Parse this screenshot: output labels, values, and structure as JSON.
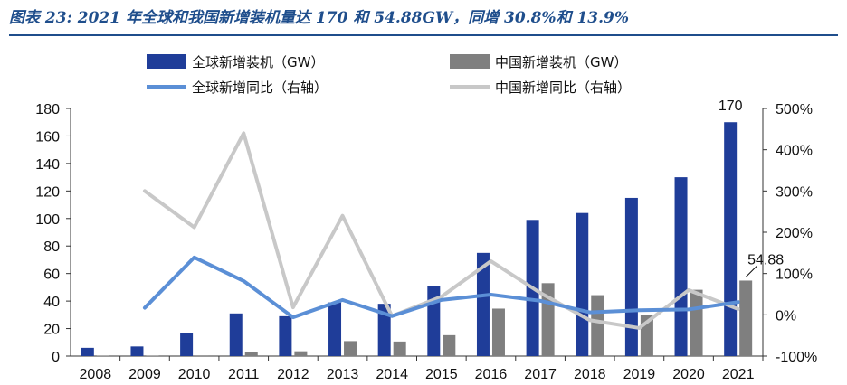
{
  "figure": {
    "title": "图表 23: 2021 年全球和我国新增装机量达 170 和 54.88GW，同增 30.8%和 13.9%"
  },
  "colors": {
    "global_bar": "#1f3d99",
    "china_bar": "#7f7f7f",
    "global_line": "#5b8fd6",
    "china_line": "#c8c8c8",
    "title": "#1f4e8c"
  },
  "chart_data": {
    "type": "bar",
    "categories": [
      "2008",
      "2009",
      "2010",
      "2011",
      "2012",
      "2013",
      "2014",
      "2015",
      "2016",
      "2017",
      "2018",
      "2019",
      "2020",
      "2021"
    ],
    "ylim": [
      0,
      180
    ],
    "y_ticks": [
      "0",
      "20",
      "40",
      "60",
      "80",
      "100",
      "120",
      "140",
      "160",
      "180"
    ],
    "y2lim": [
      -100,
      500
    ],
    "y2_ticks": [
      "-100%",
      "0%",
      "100%",
      "200%",
      "300%",
      "400%",
      "500%"
    ],
    "grid": false,
    "legend_position": "top",
    "series": [
      {
        "name": "全球新增装机（GW）",
        "type": "bar",
        "axis": "left",
        "values": [
          6,
          7,
          17,
          31,
          29,
          39,
          38,
          51,
          75,
          99,
          104,
          115,
          130,
          170
        ]
      },
      {
        "name": "中国新增装机（GW）",
        "type": "bar",
        "axis": "left",
        "values": [
          0.2,
          0.2,
          0.5,
          2.7,
          3.5,
          10.9,
          10.6,
          15.2,
          34.5,
          53,
          44.3,
          30,
          48.2,
          54.88
        ]
      },
      {
        "name": "全球新增同比（右轴）",
        "type": "line",
        "axis": "right",
        "values": [
          null,
          17,
          139,
          82,
          -6,
          36,
          -3,
          36,
          49,
          34,
          6,
          11,
          13,
          31
        ]
      },
      {
        "name": "中国新增同比（右轴）",
        "type": "line",
        "axis": "right",
        "values": [
          null,
          300,
          212,
          440,
          18,
          240,
          -3,
          44,
          130,
          53,
          -13,
          -32,
          60,
          14
        ]
      }
    ],
    "annotations": [
      {
        "text": "170",
        "category": "2021",
        "series": "全球新增装机（GW）"
      },
      {
        "text": "54.88",
        "category": "2021",
        "series": "中国新增装机（GW）"
      }
    ]
  }
}
